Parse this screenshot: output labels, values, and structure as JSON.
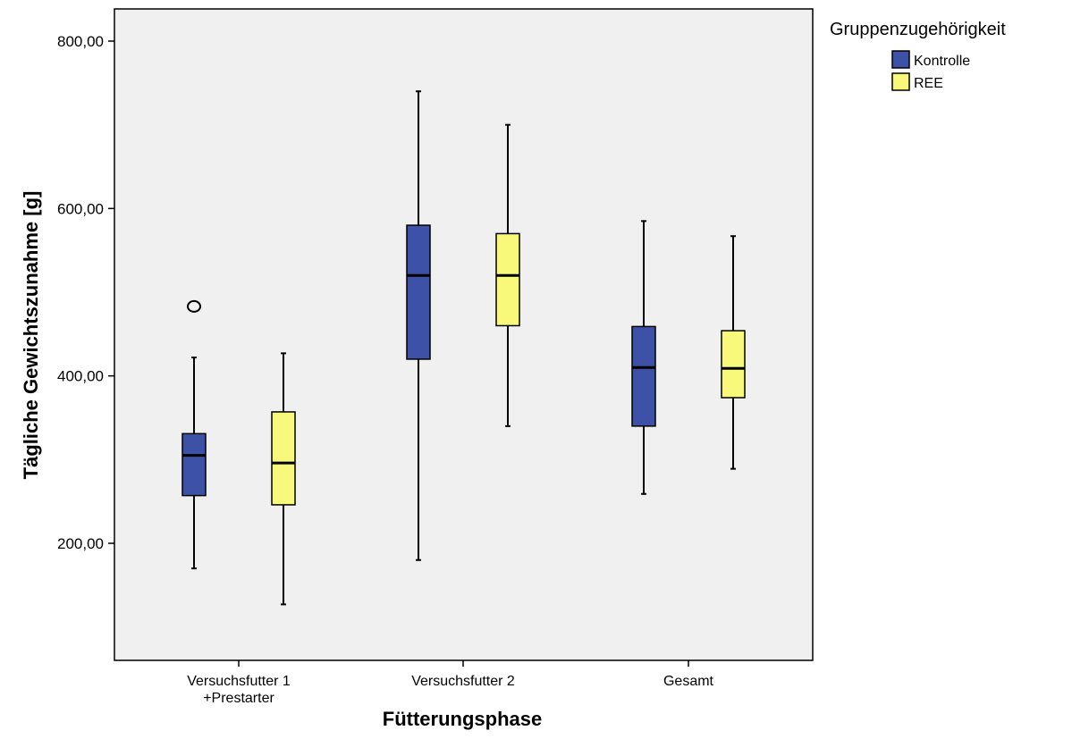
{
  "chart_data": {
    "type": "boxplot",
    "xlabel": "Fütterungsphase",
    "ylabel": "Tägliche Gewichtszunahme [g]",
    "ylim": [
      90,
      840
    ],
    "yticks": [
      200,
      400,
      600,
      800
    ],
    "ytick_labels": [
      "200,00",
      "400,00",
      "600,00",
      "800,00"
    ],
    "categories": [
      {
        "line1": "Versuchsfutter 1",
        "line2": "+Prestarter"
      },
      {
        "line1": "Versuchsfutter 2",
        "line2": ""
      },
      {
        "line1": "Gesamt",
        "line2": ""
      }
    ],
    "legend": {
      "title": "Gruppenzugehörigkeit",
      "position": "top-right, outside plot"
    },
    "series": [
      {
        "name": "Kontrolle",
        "color": "#3d52a6",
        "boxes": [
          {
            "min": 170,
            "q1": 257,
            "median": 305,
            "q3": 331,
            "max": 422,
            "outliers": [
              483
            ]
          },
          {
            "min": 180,
            "q1": 420,
            "median": 520,
            "q3": 580,
            "max": 740,
            "outliers": []
          },
          {
            "min": 259,
            "q1": 340,
            "median": 410,
            "q3": 459,
            "max": 585,
            "outliers": []
          }
        ]
      },
      {
        "name": "REE",
        "color": "#f8f87a",
        "boxes": [
          {
            "min": 127,
            "q1": 246,
            "median": 296,
            "q3": 357,
            "max": 427,
            "outliers": []
          },
          {
            "min": 340,
            "q1": 460,
            "median": 520,
            "q3": 570,
            "max": 700,
            "outliers": []
          },
          {
            "min": 289,
            "q1": 374,
            "median": 409,
            "q3": 454,
            "max": 567,
            "outliers": []
          }
        ]
      }
    ],
    "plot_background": "#f0f0f0",
    "grid": false
  }
}
